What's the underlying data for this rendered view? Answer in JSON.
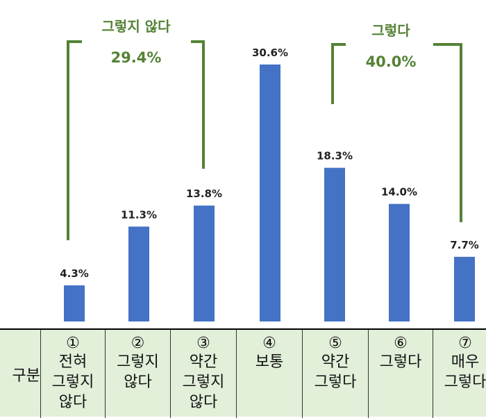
{
  "colors": {
    "bar": "#4472c4",
    "bracket": "#548235",
    "table_bg": "#e2efd9",
    "label": "#222222"
  },
  "table": {
    "header": "구분",
    "columns": [
      {
        "num": "①",
        "label": "전혀\n그렇지\n않다"
      },
      {
        "num": "②",
        "label": "그렇지\n않다"
      },
      {
        "num": "③",
        "label": "약간\n그렇지\n않다"
      },
      {
        "num": "④",
        "label": "보통"
      },
      {
        "num": "⑤",
        "label": "약간\n그렇다"
      },
      {
        "num": "⑥",
        "label": "그렇다"
      },
      {
        "num": "⑦",
        "label": "매우\n그렇다"
      }
    ]
  },
  "chart_data": {
    "type": "bar",
    "categories": [
      "① 전혀 그렇지 않다",
      "② 그렇지 않다",
      "③ 약간 그렇지 않다",
      "④ 보통",
      "⑤ 약간 그렇다",
      "⑥ 그렇다",
      "⑦ 매우 그렇다"
    ],
    "values": [
      4.3,
      11.3,
      13.8,
      30.6,
      18.3,
      14.0,
      7.7
    ],
    "value_labels": [
      "4.3%",
      "11.3%",
      "13.8%",
      "30.6%",
      "18.3%",
      "14.0%",
      "7.7%"
    ],
    "groups": [
      {
        "name": "그렇지 않다",
        "total": "29.4%",
        "from": 0,
        "to": 2
      },
      {
        "name": "그렇다",
        "total": "40.0%",
        "from": 4,
        "to": 6
      }
    ],
    "ylim": [
      0,
      31.5
    ],
    "grid": false,
    "legend": "none"
  }
}
